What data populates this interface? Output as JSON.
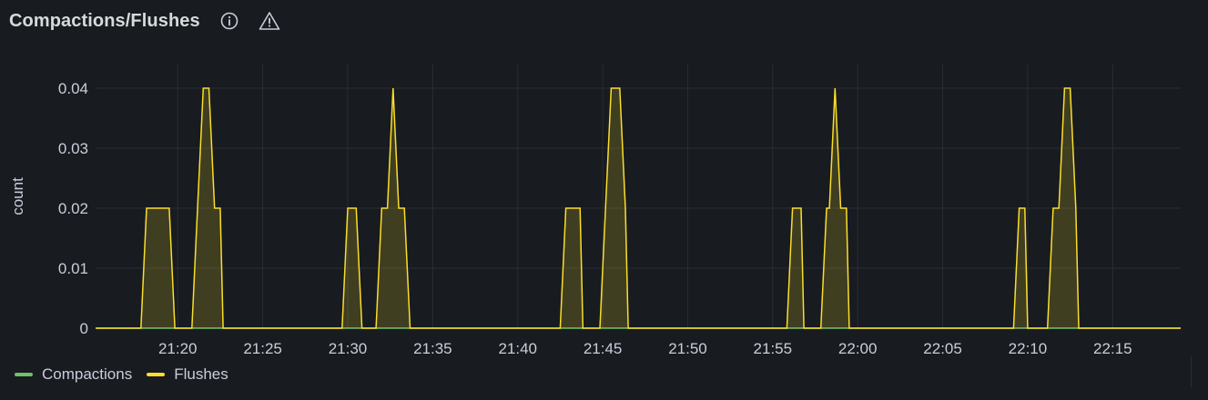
{
  "panel": {
    "title": "Compactions/Flushes",
    "info_icon": "info-circle-icon",
    "warning_icon": "warning-triangle-icon"
  },
  "colors": {
    "background": "#181b1f",
    "grid": "#2a2d33",
    "text": "#ccccdc",
    "compactions": "#73bf69",
    "flushes": "#fade2a",
    "flushes_fill": "rgba(250,222,42,0.18)"
  },
  "legend": [
    {
      "name": "Compactions",
      "color": "#73bf69"
    },
    {
      "name": "Flushes",
      "color": "#fade2a"
    }
  ],
  "chart_data": {
    "type": "area",
    "ylabel": "count",
    "xlabel": "",
    "ylim": [
      0,
      0.04
    ],
    "yticks": [
      "0",
      "0.01",
      "0.02",
      "0.03",
      "0.04"
    ],
    "xlim": [
      "21:15:10",
      "22:19:00"
    ],
    "xticks": [
      "21:20",
      "21:25",
      "21:30",
      "21:35",
      "21:40",
      "21:45",
      "21:50",
      "21:55",
      "22:00",
      "22:05",
      "22:10",
      "22:15"
    ],
    "grid": true,
    "legend_position": "bottom-left",
    "series": [
      {
        "name": "Compactions",
        "points": [
          [
            "21:15:10",
            0
          ],
          [
            "22:19:00",
            0
          ]
        ]
      },
      {
        "name": "Flushes",
        "points": [
          [
            "21:15:10",
            0
          ],
          [
            "21:17:50",
            0
          ],
          [
            "21:18:10",
            0.02
          ],
          [
            "21:18:40",
            0.02
          ],
          [
            "21:19:00",
            0.02
          ],
          [
            "21:19:20",
            0.02
          ],
          [
            "21:19:30",
            0.02
          ],
          [
            "21:19:50",
            0
          ],
          [
            "21:20:50",
            0
          ],
          [
            "21:21:10",
            0.02
          ],
          [
            "21:21:30",
            0.04
          ],
          [
            "21:21:50",
            0.04
          ],
          [
            "21:22:10",
            0.02
          ],
          [
            "21:22:30",
            0.02
          ],
          [
            "21:22:40",
            0
          ],
          [
            "21:29:40",
            0
          ],
          [
            "21:30:00",
            0.02
          ],
          [
            "21:30:20",
            0.02
          ],
          [
            "21:30:30",
            0.02
          ],
          [
            "21:30:50",
            0
          ],
          [
            "21:31:40",
            0
          ],
          [
            "21:32:00",
            0.02
          ],
          [
            "21:32:20",
            0.02
          ],
          [
            "21:32:40",
            0.04
          ],
          [
            "21:33:00",
            0.02
          ],
          [
            "21:33:20",
            0.02
          ],
          [
            "21:33:40",
            0
          ],
          [
            "21:42:30",
            0
          ],
          [
            "21:42:50",
            0.02
          ],
          [
            "21:43:20",
            0.02
          ],
          [
            "21:43:40",
            0.02
          ],
          [
            "21:43:50",
            0
          ],
          [
            "21:44:50",
            0
          ],
          [
            "21:45:10",
            0.02
          ],
          [
            "21:45:30",
            0.04
          ],
          [
            "21:46:00",
            0.04
          ],
          [
            "21:46:20",
            0.02
          ],
          [
            "21:46:30",
            0
          ],
          [
            "21:55:50",
            0
          ],
          [
            "21:56:10",
            0.02
          ],
          [
            "21:56:40",
            0.02
          ],
          [
            "21:56:50",
            0
          ],
          [
            "21:57:50",
            0
          ],
          [
            "21:58:10",
            0.02
          ],
          [
            "21:58:20",
            0.02
          ],
          [
            "21:58:40",
            0.04
          ],
          [
            "21:59:00",
            0.02
          ],
          [
            "21:59:20",
            0.02
          ],
          [
            "21:59:30",
            0
          ],
          [
            "22:09:10",
            0
          ],
          [
            "22:09:30",
            0.02
          ],
          [
            "22:09:50",
            0.02
          ],
          [
            "22:10:00",
            0
          ],
          [
            "22:11:10",
            0
          ],
          [
            "22:11:30",
            0.02
          ],
          [
            "22:11:50",
            0.02
          ],
          [
            "22:12:10",
            0.04
          ],
          [
            "22:12:30",
            0.04
          ],
          [
            "22:12:50",
            0.02
          ],
          [
            "22:13:00",
            0
          ],
          [
            "22:19:00",
            0
          ]
        ]
      }
    ]
  }
}
